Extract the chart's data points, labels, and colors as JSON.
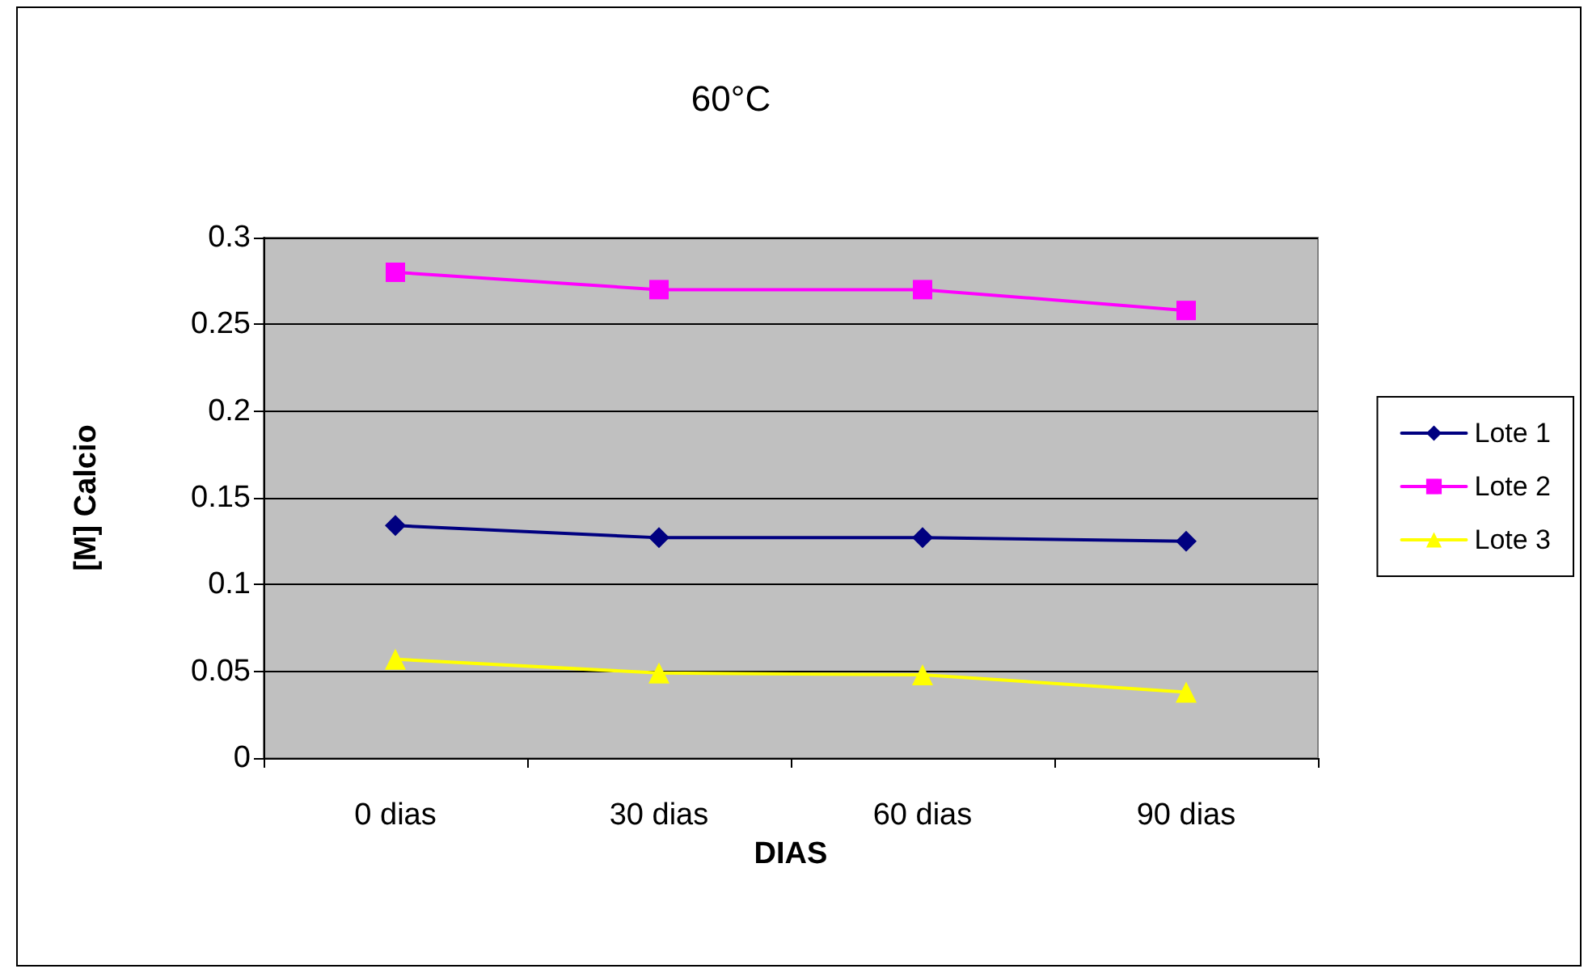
{
  "chart_data": {
    "type": "line",
    "title": "60°C",
    "xlabel": "DIAS",
    "ylabel": "[M] Calcio",
    "categories": [
      "0 dias",
      "30 dias",
      "60 dias",
      "90 dias"
    ],
    "series": [
      {
        "name": "Lote 1",
        "color": "#000080",
        "marker": "diamond",
        "values": [
          0.134,
          0.127,
          0.127,
          0.125
        ]
      },
      {
        "name": "Lote 2",
        "color": "#ff00ff",
        "marker": "square",
        "values": [
          0.28,
          0.27,
          0.27,
          0.258
        ]
      },
      {
        "name": "Lote 3",
        "color": "#ffff00",
        "marker": "triangle",
        "values": [
          0.057,
          0.049,
          0.048,
          0.038
        ]
      }
    ],
    "ylim": [
      0,
      0.3
    ],
    "yticks": [
      0,
      0.05,
      0.1,
      0.15,
      0.2,
      0.25,
      0.3
    ],
    "grid": "y",
    "legend": "right"
  }
}
